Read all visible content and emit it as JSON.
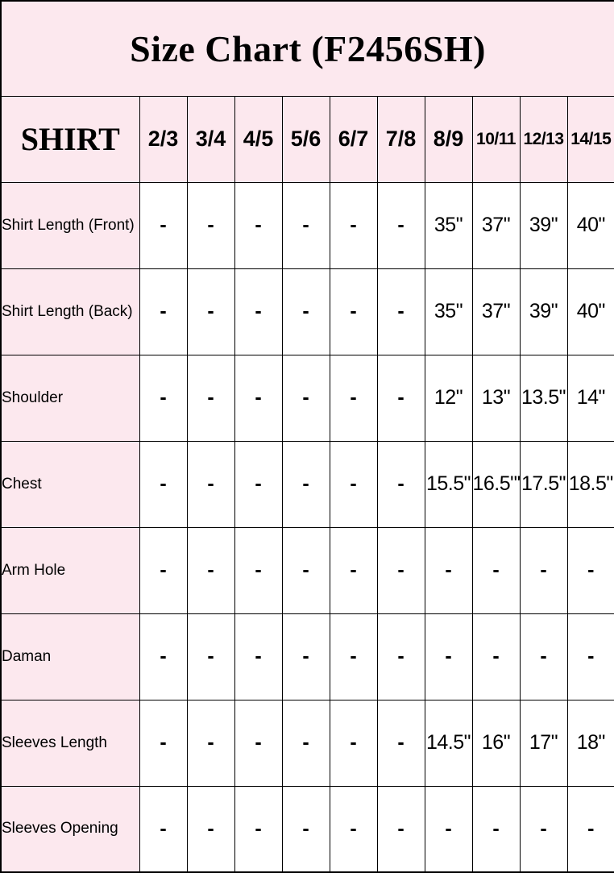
{
  "title": "Size Chart (F2456SH)",
  "chart_data": {
    "type": "table",
    "title": "Size Chart (F2456SH)",
    "corner_header": "SHIRT",
    "size_columns": [
      "2/3",
      "3/4",
      "4/5",
      "5/6",
      "6/7",
      "7/8",
      "8/9",
      "10/11",
      "12/13",
      "14/15"
    ],
    "rows": [
      {
        "label": "Shirt Length (Front)",
        "values": [
          "-",
          "-",
          "-",
          "-",
          "-",
          "-",
          "35\"",
          "37\"",
          "39\"",
          "40\""
        ]
      },
      {
        "label": "Shirt Length (Back)",
        "values": [
          "-",
          "-",
          "-",
          "-",
          "-",
          "-",
          "35\"",
          "37\"",
          "39\"",
          "40\""
        ]
      },
      {
        "label": "Shoulder",
        "values": [
          "-",
          "-",
          "-",
          "-",
          "-",
          "-",
          "12\"",
          "13\"",
          "13.5\"",
          "14\""
        ]
      },
      {
        "label": "Chest",
        "values": [
          "-",
          "-",
          "-",
          "-",
          "-",
          "-",
          "15.5\"",
          "16.5\"'",
          "17.5\"",
          "18.5\""
        ]
      },
      {
        "label": "Arm Hole",
        "values": [
          "-",
          "-",
          "-",
          "-",
          "-",
          "-",
          "-",
          "-",
          "-",
          "-"
        ]
      },
      {
        "label": "Daman",
        "values": [
          "-",
          "-",
          "-",
          "-",
          "-",
          "-",
          "-",
          "-",
          "-",
          "-"
        ]
      },
      {
        "label": "Sleeves Length",
        "values": [
          "-",
          "-",
          "-",
          "-",
          "-",
          "-",
          "14.5\"",
          "16\"",
          "17\"",
          "18\""
        ]
      },
      {
        "label": "Sleeves Opening",
        "values": [
          "-",
          "-",
          "-",
          "-",
          "-",
          "-",
          "-",
          "-",
          "-",
          "-"
        ]
      }
    ]
  },
  "colors": {
    "background_pink": "#fce8ee",
    "cell_white": "#ffffff",
    "border": "#000000",
    "text": "#000000"
  }
}
